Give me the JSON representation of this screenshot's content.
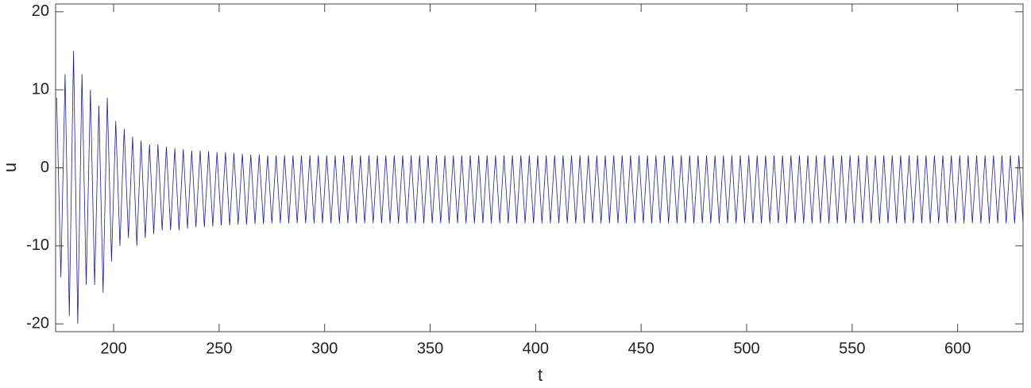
{
  "chart_data": {
    "type": "line",
    "xlabel": "t",
    "ylabel": "u",
    "color": "#1c1c9c",
    "xlim": [
      172.5,
      631
    ],
    "ylim": [
      -21,
      21
    ],
    "xticks": [
      200,
      250,
      300,
      350,
      400,
      450,
      500,
      550,
      600
    ],
    "yticks": [
      -20,
      -10,
      0,
      10,
      20
    ],
    "x": [
      173,
      175,
      177,
      179,
      181,
      183,
      185,
      187,
      189,
      191,
      193,
      195,
      197,
      199,
      201,
      203,
      205,
      207,
      209,
      211,
      213,
      215,
      217,
      219,
      221,
      223,
      225,
      227,
      229,
      231,
      233,
      235,
      237,
      239,
      241,
      243,
      245,
      247,
      249,
      251,
      253,
      255,
      257,
      259,
      261,
      263,
      265,
      267,
      269,
      271,
      273,
      275,
      277,
      279,
      281,
      283,
      285,
      287,
      289,
      291,
      293,
      295,
      297,
      299,
      301,
      303,
      305,
      307,
      309,
      311,
      313,
      315,
      317,
      319,
      321,
      323,
      325,
      327,
      329,
      331,
      333,
      335,
      337,
      339,
      341,
      343,
      345,
      347,
      349,
      351,
      353,
      355,
      357,
      359,
      361,
      363,
      365,
      367,
      369,
      371,
      373,
      375,
      377,
      379,
      381,
      383,
      385,
      387,
      389,
      391,
      393,
      395,
      397,
      399,
      401,
      403,
      405,
      407,
      409,
      411,
      413,
      415,
      417,
      419,
      421,
      423,
      425,
      427,
      429,
      431,
      433,
      435,
      437,
      439,
      441,
      443,
      445,
      447,
      449,
      451,
      453,
      455,
      457,
      459,
      461,
      463,
      465,
      467,
      469,
      471,
      473,
      475,
      477,
      479,
      481,
      483,
      485,
      487,
      489,
      491,
      493,
      495,
      497,
      499,
      501,
      503,
      505,
      507,
      509,
      511,
      513,
      515,
      517,
      519,
      521,
      523,
      525,
      527,
      529,
      531,
      533,
      535,
      537,
      539,
      541,
      543,
      545,
      547,
      549,
      551,
      553,
      555,
      557,
      559,
      561,
      563,
      565,
      567,
      569,
      571,
      573,
      575,
      577,
      579,
      581,
      583,
      585,
      587,
      589,
      591,
      593,
      595,
      597,
      599,
      601,
      603,
      605,
      607,
      609,
      611,
      613,
      615,
      617,
      619,
      621,
      623,
      625,
      627,
      629,
      631
    ],
    "values": [
      9,
      -14,
      12,
      -19,
      15,
      -20,
      12,
      -15,
      10,
      -15,
      8,
      -16,
      9,
      -12,
      6,
      -10,
      5,
      -9,
      4,
      -10,
      3.5,
      -9,
      3,
      -8.5,
      3,
      -8,
      2.7,
      -8,
      2.5,
      -8,
      2.4,
      -7.8,
      2.2,
      -7.6,
      2.2,
      -7.6,
      2.1,
      -7.5,
      2,
      -7.4,
      2,
      -7.4,
      1.9,
      -7.3,
      1.8,
      -7.3,
      1.7,
      -7.2,
      1.7,
      -7.2,
      1.6,
      -7.1,
      1.6,
      -7.1,
      1.6,
      -7.1,
      1.6,
      -7.1,
      1.6,
      -7.1,
      1.6,
      -7.1,
      1.6,
      -7.1,
      1.6,
      -7.1,
      1.6,
      -7.1,
      1.6,
      -7.1,
      1.6,
      -7.1,
      1.6,
      -7.1,
      1.6,
      -7.1,
      1.6,
      -7.1,
      1.6,
      -7.1,
      1.6,
      -7.1,
      1.6,
      -7.1,
      1.6,
      -7.1,
      1.6,
      -7.1,
      1.6,
      -7.1,
      1.6,
      -7.1,
      1.6,
      -7.1,
      1.6,
      -7.1,
      1.6,
      -7.1,
      1.6,
      -7.1,
      1.6,
      -7.1,
      1.6,
      -7.1,
      1.6,
      -7.1,
      1.6,
      -7.1,
      1.6,
      -7.1,
      1.6,
      -7.1,
      1.6,
      -7.1,
      1.6,
      -7.1,
      1.6,
      -7.1,
      1.6,
      -7.1,
      1.6,
      -7.1,
      1.6,
      -7.1,
      1.6,
      -7.1,
      1.6,
      -7.1,
      1.6,
      -7.1,
      1.6,
      -7.1,
      1.6,
      -7.1,
      1.6,
      -7.1,
      1.6,
      -7.1,
      1.6,
      -7.1,
      1.6,
      -7.1,
      1.6,
      -7.1,
      1.6,
      -7.1,
      1.6,
      -7.1,
      1.6,
      -7.1,
      1.6,
      -7.1,
      1.6,
      -7.1,
      1.6,
      -7.1,
      1.6,
      -7.1,
      1.6,
      -7.1,
      1.6,
      -7.1,
      1.6,
      -7.1,
      1.6,
      -7.1,
      1.6,
      -7.1,
      1.6,
      -7.1,
      1.6,
      -7.1,
      1.6,
      -7.1,
      1.6,
      -7.1,
      1.6,
      -7.1,
      1.6,
      -7.1,
      1.6,
      -7.1,
      1.6,
      -7.1,
      1.6,
      -7.1,
      1.6,
      -7.1,
      1.6,
      -7.1,
      1.6,
      -7.1,
      1.6,
      -7.1,
      1.6,
      -7.1,
      1.6,
      -7.1,
      1.6,
      -7.1,
      1.6,
      -7.1,
      1.6,
      -7.1,
      1.6,
      -7.1,
      1.6,
      -7.1,
      1.6,
      -7.1,
      1.6,
      -7.1,
      1.6,
      -7.1,
      1.6,
      -7.1,
      1.6,
      -7.1,
      1.6,
      -7.1,
      1.6,
      -7.1,
      1.6,
      -7.1,
      1.6,
      -7.1,
      1.6,
      -7.1,
      1.6,
      -7.1
    ]
  }
}
